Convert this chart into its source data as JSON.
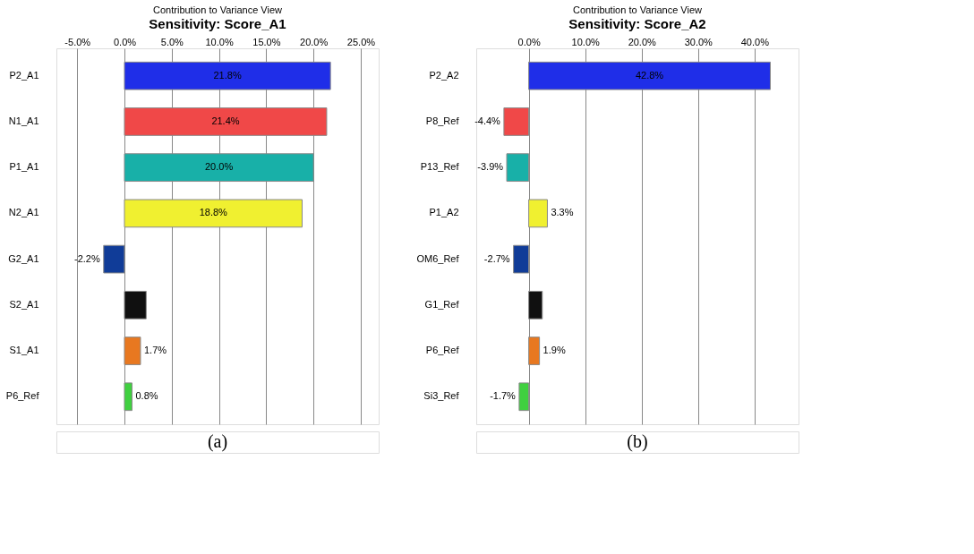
{
  "chart_data": [
    {
      "type": "bar",
      "orientation": "horizontal",
      "title": "Sensitivity: Score_A1",
      "annotations": [
        "Contribution to Variance View",
        "(a)"
      ],
      "categories": [
        "P2_A1",
        "N1_A1",
        "P1_A1",
        "N2_A1",
        "G2_A1",
        "S2_A1",
        "S1_A1",
        "P6_Ref"
      ],
      "values": [
        21.8,
        21.4,
        20.0,
        18.8,
        -2.2,
        2.3,
        1.7,
        0.8
      ],
      "value_labels": [
        "21.8%",
        "21.4%",
        "20.0%",
        "18.8%",
        "-2.2%",
        null,
        "1.7%",
        "0.8%"
      ],
      "colors": [
        "#1f2ee8",
        "#f04848",
        "#18b0a8",
        "#f0f030",
        "#103c98",
        "#101010",
        "#e87820",
        "#40d040"
      ],
      "xlim": [
        -7.2,
        26.9
      ],
      "xticks": [
        {
          "value": -5,
          "label": "-5.0%"
        },
        {
          "value": 0,
          "label": "0.0%"
        },
        {
          "value": 5,
          "label": "5.0%"
        },
        {
          "value": 10,
          "label": "10.0%"
        },
        {
          "value": 15,
          "label": "15.0%"
        },
        {
          "value": 20,
          "label": "20.0%"
        },
        {
          "value": 25,
          "label": "25.0%"
        }
      ],
      "grid": "x"
    },
    {
      "type": "bar",
      "orientation": "horizontal",
      "title": "Sensitivity: Score_A2",
      "annotations": [
        "Contribution to Variance View",
        "(b)"
      ],
      "categories": [
        "P2_A2",
        "P8_Ref",
        "P13_Ref",
        "P1_A2",
        "OM6_Ref",
        "G1_Ref",
        "P6_Ref",
        "Si3_Ref"
      ],
      "values": [
        42.8,
        -4.4,
        -3.9,
        3.3,
        -2.7,
        2.4,
        1.9,
        -1.7
      ],
      "value_labels": [
        "42.8%",
        "-4.4%",
        "-3.9%",
        "3.3%",
        "-2.7%",
        null,
        "1.9%",
        "-1.7%"
      ],
      "colors": [
        "#1f2ee8",
        "#f04848",
        "#18b0a8",
        "#f0f030",
        "#103c98",
        "#101010",
        "#e87820",
        "#40d040"
      ],
      "xlim": [
        -9.3,
        47.8
      ],
      "xticks": [
        {
          "value": 0,
          "label": "0.0%"
        },
        {
          "value": 10,
          "label": "10.0%"
        },
        {
          "value": 20,
          "label": "20.0%"
        },
        {
          "value": 30,
          "label": "30.0%"
        },
        {
          "value": 40,
          "label": "40.0%"
        }
      ],
      "grid": "x"
    }
  ]
}
